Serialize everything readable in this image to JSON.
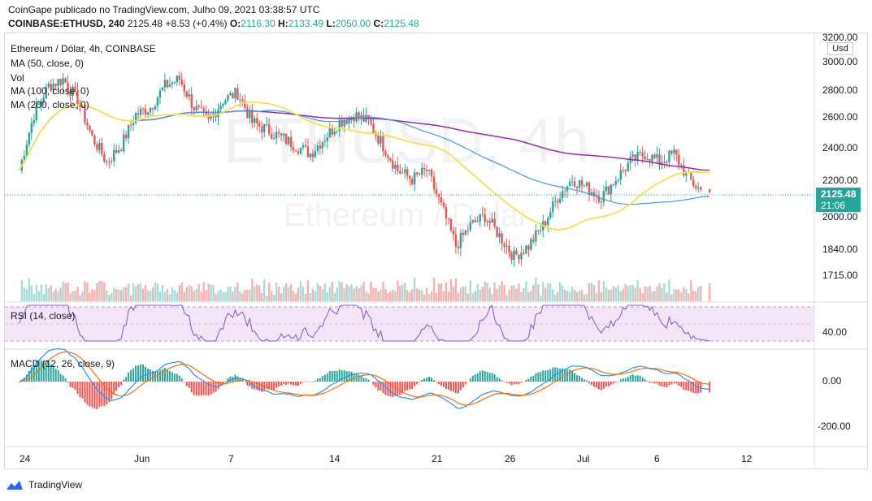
{
  "header": {
    "line1": "CoinGape publicado no TradingView.com, Julho 09, 2021 03:38:57 UTC",
    "symbol": "COINBASE:ETHUSD, 240",
    "last": "2125.48",
    "change": "+8.53 (+0.4%)",
    "o_label": "O:",
    "o_val": "2116.30",
    "h_label": "H:",
    "h_val": "2133.49",
    "l_label": "L:",
    "l_val": "2050.00",
    "c_label": "C:",
    "c_val": "2125.48"
  },
  "legend": {
    "title": "Ethereum / Dólar, 4h, COINBASE",
    "ma50": "MA (50, close, 0)",
    "vol": "Vol",
    "ma100": "MA (100, close, 0)",
    "ma200": "MA (200, close, 0)"
  },
  "watermark": {
    "big": "ETHUSD, 4h",
    "small": "Ethereum / Dólar"
  },
  "indicators": {
    "rsi_label": "RSI (14, close)",
    "macd_label": "MACD (12, 26, close, 9)"
  },
  "price_tag": {
    "price": "2125.48",
    "countdown": "21:06"
  },
  "usd_label": "Usd",
  "branding": "TradingView",
  "colors": {
    "up": "#26a69a",
    "down": "#ef5350",
    "ma50": "#f5e14b",
    "ma100": "#3d9be9",
    "ma200": "#9c27b0",
    "rsi": "#7e57c2",
    "macd": "#2196f3",
    "signal": "#ff6d00"
  },
  "chart_data": {
    "type": "candlestick",
    "price_axis": {
      "ticks": [
        "3200.00",
        "3000.00",
        "2800.00",
        "2600.00",
        "2400.00",
        "2200.00",
        "2000.00",
        "1840.00",
        "1715.00"
      ],
      "values": [
        3200,
        3000,
        2800,
        2600,
        2400,
        2200,
        2000,
        1840,
        1715
      ],
      "scale": "log"
    },
    "x_ticks": [
      "24",
      "Jun",
      "7",
      "14",
      "21",
      "26",
      "Jul",
      "6",
      "12"
    ],
    "x_tick_dates": [
      "2021-05-24",
      "2021-06-01",
      "2021-06-07",
      "2021-06-14",
      "2021-06-21",
      "2021-06-26",
      "2021-07-01",
      "2021-07-06",
      "2021-07-12"
    ],
    "close_path": {
      "dates": [
        "2021-05-23",
        "2021-05-24",
        "2021-05-25",
        "2021-05-26",
        "2021-05-27",
        "2021-05-28",
        "2021-05-29",
        "2021-05-30",
        "2021-05-31",
        "2021-06-01",
        "2021-06-02",
        "2021-06-03",
        "2021-06-04",
        "2021-06-05",
        "2021-06-06",
        "2021-06-07",
        "2021-06-08",
        "2021-06-09",
        "2021-06-10",
        "2021-06-11",
        "2021-06-12",
        "2021-06-13",
        "2021-06-14",
        "2021-06-15",
        "2021-06-16",
        "2021-06-17",
        "2021-06-18",
        "2021-06-19",
        "2021-06-20",
        "2021-06-21",
        "2021-06-22",
        "2021-06-23",
        "2021-06-24",
        "2021-06-25",
        "2021-06-26",
        "2021-06-27",
        "2021-06-28",
        "2021-06-29",
        "2021-06-30",
        "2021-07-01",
        "2021-07-02",
        "2021-07-03",
        "2021-07-04",
        "2021-07-05",
        "2021-07-06",
        "2021-07-07",
        "2021-07-08",
        "2021-07-09"
      ],
      "values": [
        2250,
        2600,
        2800,
        2850,
        2700,
        2450,
        2300,
        2400,
        2600,
        2650,
        2800,
        2850,
        2650,
        2550,
        2700,
        2750,
        2550,
        2500,
        2450,
        2400,
        2350,
        2450,
        2550,
        2600,
        2550,
        2400,
        2250,
        2200,
        2250,
        2050,
        1850,
        1950,
        2000,
        1900,
        1800,
        1850,
        1950,
        2100,
        2200,
        2150,
        2100,
        2200,
        2300,
        2350,
        2300,
        2350,
        2200,
        2125
      ]
    },
    "ma_lines": [
      "MA 50",
      "MA 100",
      "MA 200"
    ],
    "rsi": {
      "ticks": [
        "40.00"
      ],
      "values": [
        40
      ]
    },
    "macd": {
      "ticks": [
        "0.00",
        "-200.00"
      ],
      "values": [
        0,
        -200
      ]
    }
  }
}
